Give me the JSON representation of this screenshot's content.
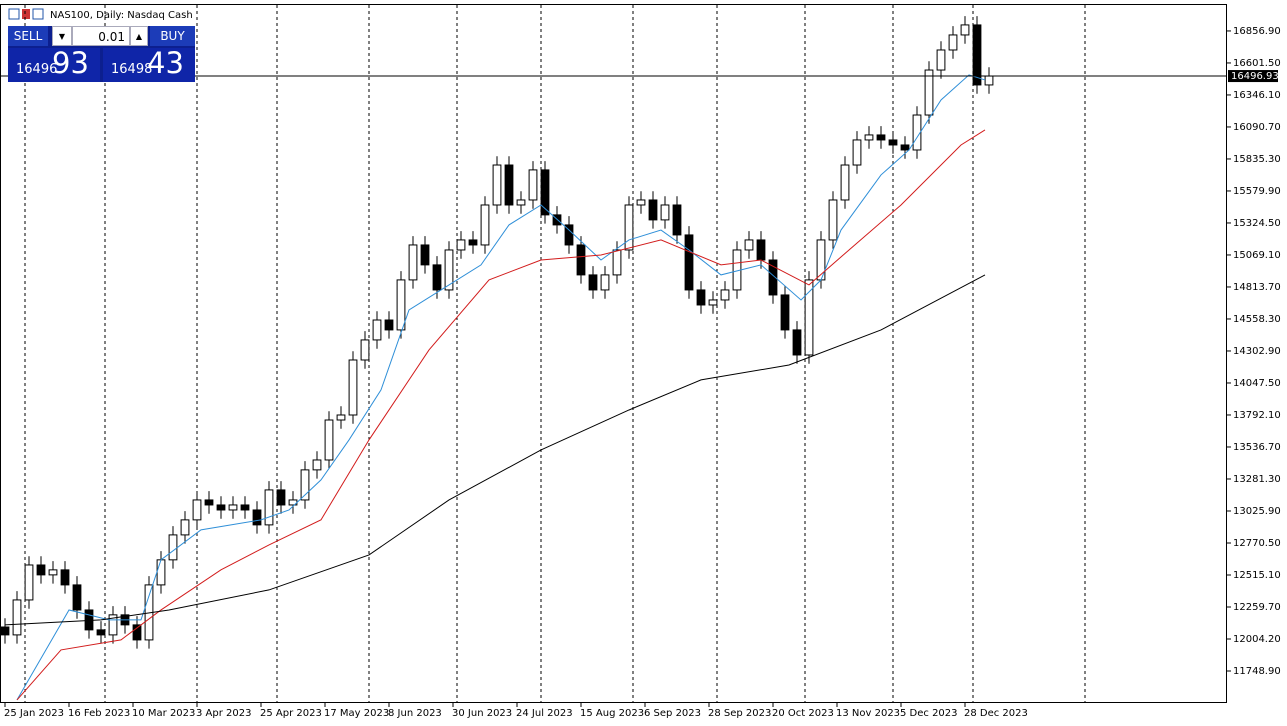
{
  "chart_data": {
    "type": "candlestick",
    "title": "NAS100, Daily:  Nasdaq Cash",
    "xlim": [
      -1.25,
      305.5
    ],
    "ylim": [
      11493.5,
      17064
    ],
    "x": [
      0,
      3,
      6,
      9,
      12,
      15,
      18,
      21,
      24,
      27,
      30,
      33,
      36,
      39,
      42,
      45,
      48,
      51,
      54,
      57,
      60,
      63,
      66,
      69,
      72,
      75,
      78,
      81,
      84,
      87,
      90,
      93,
      96,
      99,
      102,
      105,
      108,
      111,
      114,
      117,
      120,
      123,
      126,
      129,
      132,
      135,
      138,
      141,
      144,
      147,
      150,
      153,
      156,
      159,
      162,
      165,
      168,
      171,
      174,
      177,
      180,
      183,
      186,
      189,
      192,
      195,
      198,
      201,
      204,
      207,
      210,
      213,
      216,
      219,
      222,
      225,
      228,
      231,
      234,
      237,
      240,
      243,
      246
    ],
    "open": [
      12100,
      12037,
      12316,
      12595,
      12516,
      12556,
      12436,
      12236,
      12077,
      12037,
      12197,
      12117,
      11997,
      12436,
      12636,
      12835,
      12955,
      13114,
      13074,
      13034,
      13074,
      13034,
      12915,
      13194,
      13074,
      13114,
      13354,
      13433,
      13752,
      13792,
      14231,
      14391,
      14550,
      14471,
      14870,
      15149,
      14990,
      14790,
      15109,
      15189,
      15149,
      15468,
      15787,
      15468,
      15508,
      15748,
      15389,
      15309,
      15149,
      14910,
      14790,
      14910,
      15109,
      15468,
      15508,
      15349,
      15468,
      15229,
      14790,
      14670,
      14710,
      14790,
      15109,
      15189,
      15029,
      14750,
      14471,
      14271,
      14870,
      15189,
      15508,
      15787,
      15987,
      16027,
      15987,
      15947,
      15907,
      16186,
      16545,
      16705,
      16825,
      16905,
      16426
    ],
    "high": [
      12170,
      12386,
      12665,
      12665,
      12626,
      12626,
      12506,
      12306,
      12147,
      12267,
      12267,
      12187,
      12506,
      12706,
      12905,
      13025,
      13184,
      13184,
      13144,
      13144,
      13144,
      13104,
      13264,
      13264,
      13184,
      13424,
      13503,
      13822,
      13862,
      14301,
      14461,
      14620,
      14620,
      14940,
      15219,
      15219,
      15060,
      15179,
      15259,
      15259,
      15538,
      15857,
      15857,
      15578,
      15818,
      15818,
      15459,
      15379,
      15219,
      14980,
      14980,
      15179,
      15538,
      15578,
      15578,
      15538,
      15538,
      15299,
      14860,
      14780,
      14860,
      15179,
      15259,
      15259,
      15099,
      14820,
      14541,
      14940,
      15259,
      15578,
      15857,
      16057,
      16097,
      16097,
      16057,
      16017,
      16256,
      16615,
      16775,
      16895,
      16975,
      16975,
      16567
    ],
    "low": [
      11967,
      11967,
      12246,
      12446,
      12446,
      12366,
      12166,
      12007,
      11967,
      11967,
      12047,
      11927,
      11927,
      12366,
      12566,
      12765,
      12885,
      13004,
      12964,
      12964,
      12964,
      12845,
      12845,
      13004,
      13004,
      13044,
      13284,
      13363,
      13682,
      13722,
      14161,
      14321,
      14401,
      14401,
      14800,
      14920,
      14720,
      14720,
      15039,
      15079,
      15079,
      15398,
      15398,
      15398,
      15438,
      15319,
      15239,
      15079,
      14840,
      14720,
      14720,
      14840,
      15039,
      15398,
      15279,
      15279,
      15159,
      14720,
      14600,
      14600,
      14640,
      14720,
      15039,
      14959,
      14680,
      14401,
      14201,
      14201,
      14800,
      15119,
      15438,
      15717,
      15917,
      15917,
      15877,
      15837,
      15837,
      16116,
      16475,
      16635,
      16755,
      16356,
      16356
    ],
    "close": [
      12037,
      12316,
      12595,
      12516,
      12556,
      12436,
      12236,
      12077,
      12037,
      12197,
      12117,
      11997,
      12436,
      12636,
      12835,
      12955,
      13114,
      13074,
      13034,
      13074,
      13034,
      12915,
      13194,
      13074,
      13114,
      13354,
      13433,
      13752,
      13792,
      14231,
      14391,
      14550,
      14471,
      14870,
      15149,
      14990,
      14790,
      15109,
      15189,
      15149,
      15468,
      15787,
      15468,
      15508,
      15748,
      15389,
      15309,
      15149,
      14910,
      14790,
      14910,
      15109,
      15468,
      15508,
      15349,
      15468,
      15229,
      14790,
      14670,
      14710,
      14790,
      15109,
      15189,
      15029,
      14750,
      14471,
      14271,
      14870,
      15189,
      15508,
      15787,
      15987,
      16027,
      15987,
      15947,
      15907,
      16186,
      16545,
      16705,
      16825,
      16905,
      16426,
      16497
    ],
    "series": [
      {
        "color": "#2f8fd8",
        "x": [
          3,
          16,
          26,
          34,
          39,
          49,
          64,
          71,
          79,
          86,
          94,
          101,
          109,
          119,
          126,
          134,
          141,
          149,
          156,
          164,
          171,
          179,
          189,
          199,
          204,
          209,
          219,
          226,
          234,
          241,
          245
        ],
        "values": [
          11518,
          12236,
          12157,
          12157,
          12636,
          12875,
          12955,
          13034,
          13274,
          13593,
          13992,
          14630,
          14790,
          14990,
          15309,
          15468,
          15268,
          15029,
          15189,
          15268,
          15109,
          14910,
          14990,
          14710,
          14870,
          15268,
          15708,
          15907,
          16306,
          16506,
          16466
        ]
      },
      {
        "color": "#d21c1c",
        "x": [
          3,
          14,
          29,
          39,
          54,
          66,
          79,
          91,
          106,
          121,
          134,
          149,
          164,
          179,
          189,
          201,
          211,
          224,
          239,
          245
        ],
        "values": [
          11518,
          11917,
          11997,
          12236,
          12556,
          12755,
          12955,
          13593,
          14311,
          14870,
          15029,
          15069,
          15189,
          14990,
          15029,
          14830,
          15109,
          15468,
          15947,
          16067
        ]
      },
      {
        "color": "#000000",
        "x": [
          0,
          24,
          41,
          66,
          91,
          111,
          134,
          156,
          174,
          196,
          219,
          245
        ],
        "values": [
          12117,
          12157,
          12236,
          12396,
          12675,
          13114,
          13513,
          13832,
          14072,
          14191,
          14471,
          14910
        ]
      }
    ],
    "current_price": {
      "value": 16496.93,
      "label": "16496.93"
    },
    "xticks": [
      {
        "value": 0,
        "label": "25 Jan 2023"
      },
      {
        "value": 16,
        "label": "16 Feb 2023"
      },
      {
        "value": 32,
        "label": "10 Mar 2023"
      },
      {
        "value": 48,
        "label": "3 Apr 2023"
      },
      {
        "value": 64,
        "label": "25 Apr 2023"
      },
      {
        "value": 80,
        "label": "17 May 2023"
      },
      {
        "value": 96,
        "label": "8 Jun 2023"
      },
      {
        "value": 112,
        "label": "30 Jun 2023"
      },
      {
        "value": 128,
        "label": "24 Jul 2023"
      },
      {
        "value": 144,
        "label": "15 Aug 2023"
      },
      {
        "value": 160,
        "label": "6 Sep 2023"
      },
      {
        "value": 176,
        "label": "28 Sep 2023"
      },
      {
        "value": 192,
        "label": "20 Oct 2023"
      },
      {
        "value": 208,
        "label": "13 Nov 2023"
      },
      {
        "value": 224,
        "label": "5 Dec 2023"
      },
      {
        "value": 240,
        "label": "28 Dec 2023"
      }
    ],
    "yticks": [
      {
        "value": 11748.9,
        "label": "11748.90"
      },
      {
        "value": 12004.2,
        "label": "12004.20"
      },
      {
        "value": 12259.7,
        "label": "12259.70"
      },
      {
        "value": 12515.1,
        "label": "12515.10"
      },
      {
        "value": 12770.5,
        "label": "12770.50"
      },
      {
        "value": 13025.9,
        "label": "13025.90"
      },
      {
        "value": 13281.3,
        "label": "13281.30"
      },
      {
        "value": 13536.7,
        "label": "13536.70"
      },
      {
        "value": 13792.1,
        "label": "13792.10"
      },
      {
        "value": 14047.5,
        "label": "14047.50"
      },
      {
        "value": 14302.9,
        "label": "14302.90"
      },
      {
        "value": 14558.3,
        "label": "14558.30"
      },
      {
        "value": 14813.7,
        "label": "14813.70"
      },
      {
        "value": 15069.1,
        "label": "15069.10"
      },
      {
        "value": 15324.5,
        "label": "15324.50"
      },
      {
        "value": 15579.9,
        "label": "15579.90"
      },
      {
        "value": 15835.3,
        "label": "15835.30"
      },
      {
        "value": 16090.7,
        "label": "16090.70"
      },
      {
        "value": 16346.1,
        "label": "16346.10"
      },
      {
        "value": 16601.5,
        "label": "16601.50"
      },
      {
        "value": 16856.9,
        "label": "16856.90"
      }
    ],
    "grid": false
  },
  "trade_panel": {
    "sell": "SELL",
    "lot": "0.01",
    "buy": "BUY",
    "bid_main": "16496",
    "bid_big": "93",
    "ask_main": "16498",
    "ask_big": "43"
  }
}
